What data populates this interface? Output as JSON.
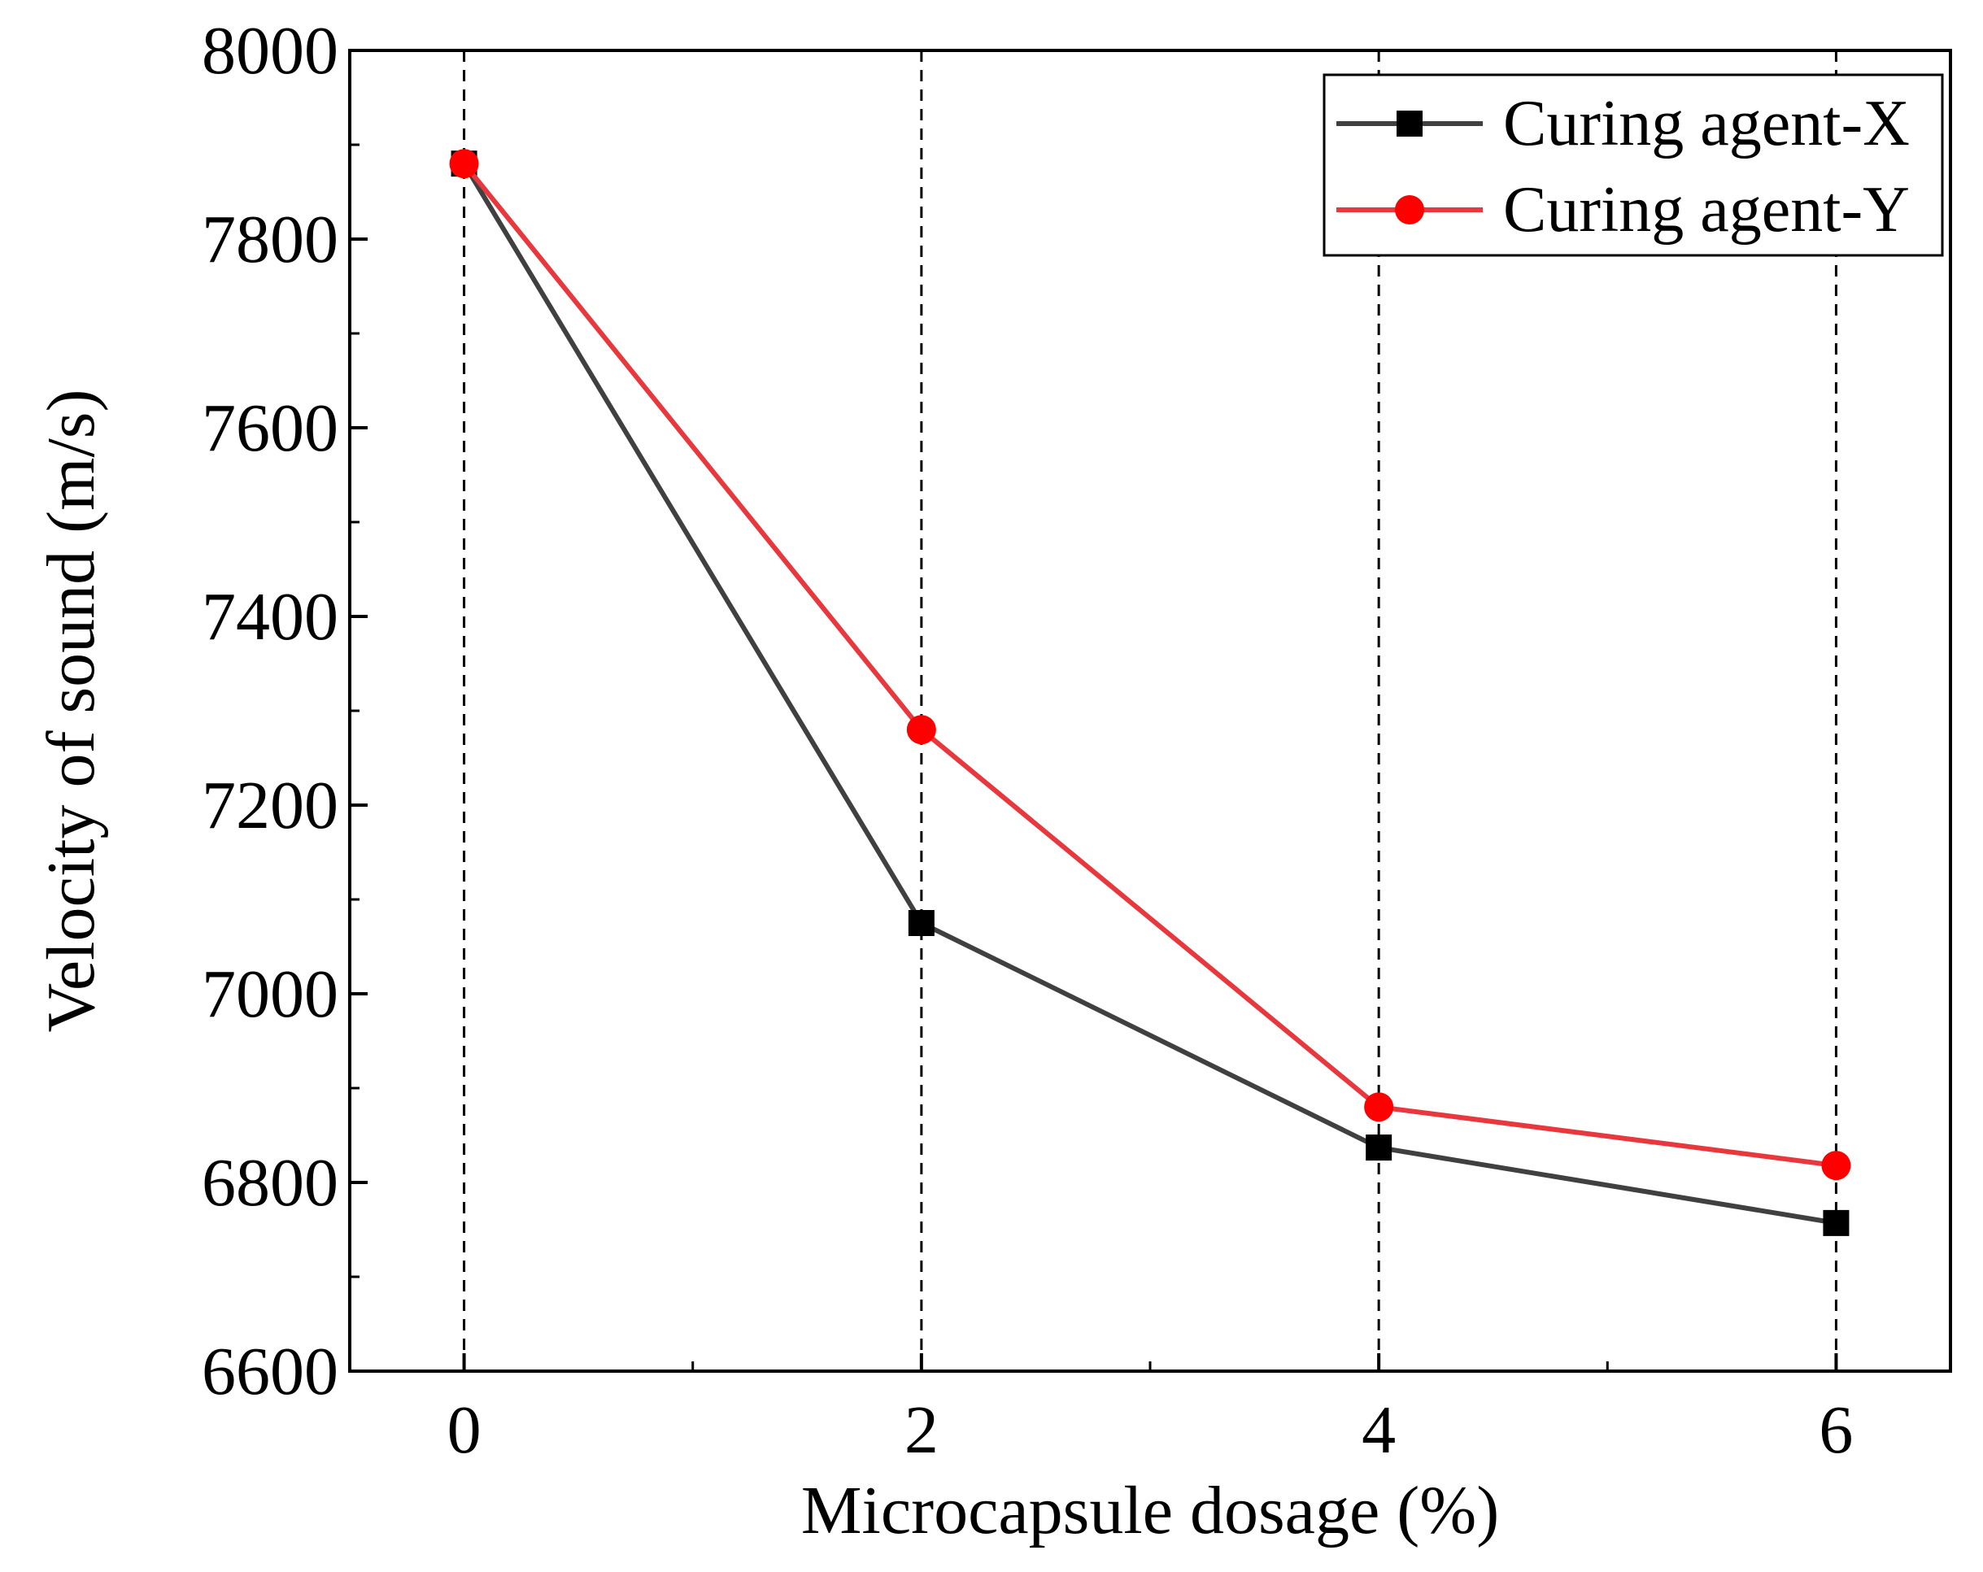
{
  "chart_data": {
    "type": "line",
    "xlabel": "Microcapsule dosage (%)",
    "ylabel": "Velocity of sound (m/s)",
    "xlim": [
      -0.5,
      6.5
    ],
    "ylim": [
      6600,
      8000
    ],
    "x_ticks": [
      0,
      2,
      4,
      6
    ],
    "y_ticks": [
      6600,
      6800,
      7000,
      7200,
      7400,
      7600,
      7800,
      8000
    ],
    "x_tick_labels": [
      "0",
      "2",
      "4",
      "6"
    ],
    "y_tick_labels": [
      "6600",
      "6800",
      "7000",
      "7200",
      "7400",
      "7600",
      "7800",
      "8000"
    ],
    "reference_lines_x": [
      0,
      2,
      4,
      6
    ],
    "legend_position": "top-right",
    "grid": false,
    "series": [
      {
        "name": "Curing agent-X",
        "color": "#404040",
        "marker": "square",
        "marker_color": "#000000",
        "x": [
          0,
          2,
          4,
          6
        ],
        "y": [
          7880,
          7075,
          6837,
          6757
        ]
      },
      {
        "name": "Curing agent-Y",
        "color": "#e8383d",
        "marker": "circle",
        "marker_color": "#ff0000",
        "x": [
          0,
          2,
          4,
          6
        ],
        "y": [
          7880,
          7280,
          6880,
          6818
        ]
      }
    ]
  }
}
